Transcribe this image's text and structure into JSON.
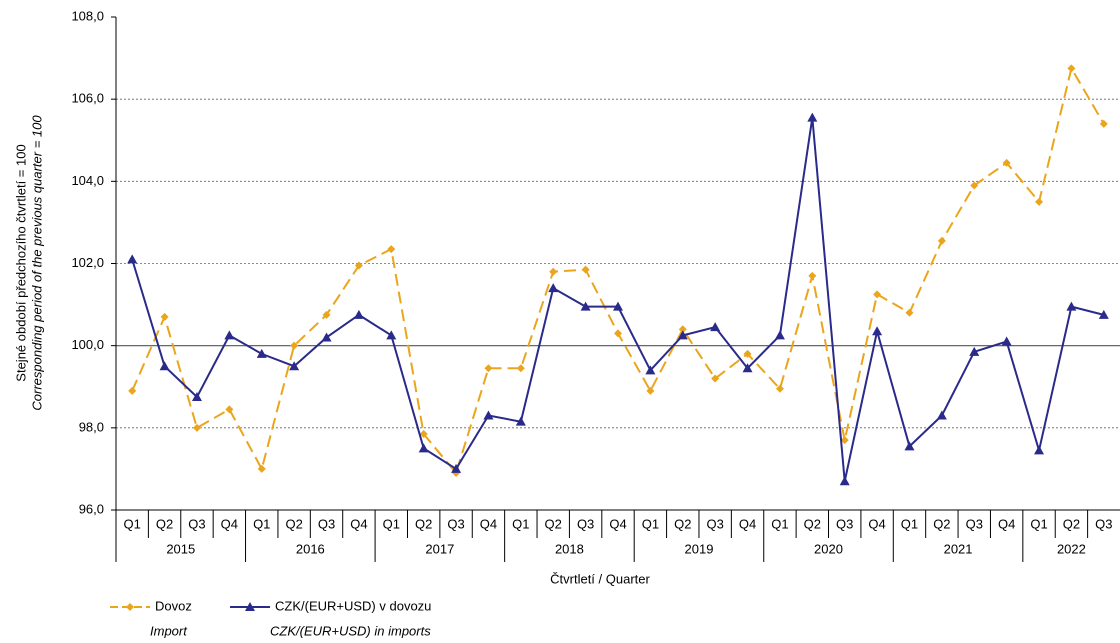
{
  "chart_data": {
    "type": "line",
    "y_label": [
      "Stejné období předchozího čtvrtletí = 100",
      "Corresponding period of the previous quarter = 100"
    ],
    "x_label": "Čtvrtletí / Quarter",
    "categories": [
      "Q1",
      "Q2",
      "Q3",
      "Q4",
      "Q1",
      "Q2",
      "Q3",
      "Q4",
      "Q1",
      "Q2",
      "Q3",
      "Q4",
      "Q1",
      "Q2",
      "Q3",
      "Q4",
      "Q1",
      "Q2",
      "Q3",
      "Q4",
      "Q1",
      "Q2",
      "Q3",
      "Q4",
      "Q1",
      "Q2",
      "Q3",
      "Q4",
      "Q1",
      "Q2",
      "Q3"
    ],
    "groups": [
      "2015",
      "2016",
      "2017",
      "2018",
      "2019",
      "2020",
      "2021",
      "2022"
    ],
    "series": [
      {
        "name": "Dovoz",
        "name_en": "Import",
        "color": "#eba51c",
        "dash": true,
        "marker": "diamond",
        "values": [
          98.9,
          100.7,
          98.0,
          98.45,
          97.0,
          100.0,
          100.75,
          101.95,
          102.35,
          97.85,
          96.9,
          99.45,
          99.45,
          101.8,
          101.85,
          100.3,
          98.9,
          100.4,
          99.2,
          99.8,
          98.95,
          101.7,
          97.7,
          101.25,
          100.8,
          102.55,
          103.9,
          104.45,
          103.5,
          106.75,
          105.4
        ]
      },
      {
        "name": "CZK/(EUR+USD) v dovozu",
        "name_en": "CZK/(EUR+USD) in imports",
        "color": "#2a2a8a",
        "dash": false,
        "marker": "triangle",
        "values": [
          102.1,
          99.5,
          98.75,
          100.25,
          99.8,
          99.5,
          100.2,
          100.75,
          100.25,
          97.5,
          97.0,
          98.3,
          98.15,
          101.4,
          100.95,
          100.95,
          99.4,
          100.25,
          100.45,
          99.45,
          100.25,
          105.55,
          96.7,
          100.35,
          97.55,
          98.3,
          99.85,
          100.1,
          97.45,
          100.95,
          100.75
        ]
      }
    ],
    "ylim": [
      96,
      108
    ],
    "yticks": [
      {
        "value": 96,
        "label": "96,0"
      },
      {
        "value": 98,
        "label": "98,0"
      },
      {
        "value": 100,
        "label": "100,0"
      },
      {
        "value": 102,
        "label": "102,0"
      },
      {
        "value": 104,
        "label": "104,0"
      },
      {
        "value": 106,
        "label": "106,0"
      },
      {
        "value": 108,
        "label": "108,0"
      }
    ],
    "baseline": 100,
    "grid": true
  }
}
